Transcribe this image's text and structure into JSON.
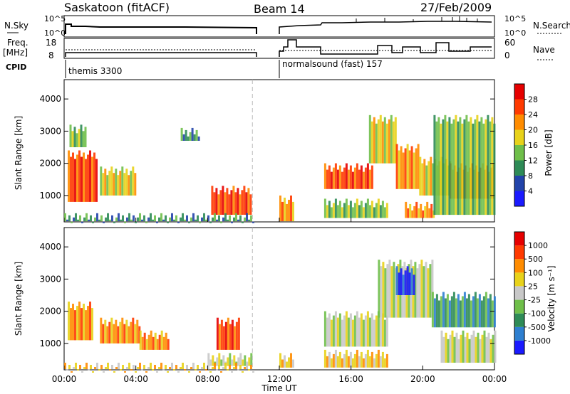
{
  "header": {
    "station": "Saskatoon (fitACF)",
    "beam": "Beam 14",
    "date": "27/Feb/2009"
  },
  "top_panels": {
    "nsky_label": "N.Sky",
    "nsky_ticks": [
      "10^5",
      "10^0"
    ],
    "nsearch_label": "N.Search",
    "nsearch_ticks": [
      "10^5",
      "10^0"
    ],
    "freq_label": "Freq.",
    "freq_unit": "[MHz]",
    "freq_ticks": [
      "18",
      "8"
    ],
    "nave_label": "Nave",
    "nave_ticks": [
      "60",
      "0"
    ],
    "cpid_label": "CPID",
    "cpid_entries": [
      {
        "text": "themis 3300"
      },
      {
        "text": "normalsound (fast) 157"
      }
    ]
  },
  "colors": {
    "axis": "#000000",
    "background": "#ffffff",
    "nodata": "#c8c8c8",
    "separator": "#bbbbbb"
  },
  "chart_data": [
    {
      "type": "heatmap",
      "name": "power",
      "ylabel": "Slant Range [km]",
      "y_ticks": [
        "1000",
        "2000",
        "3000",
        "4000"
      ],
      "ylim": [
        180,
        4600
      ],
      "xlim_hours": [
        0,
        24
      ],
      "colorbar_label": "Power [dB]",
      "colorbar_ticks": [
        "4",
        "8",
        "12",
        "16",
        "20",
        "24",
        "28"
      ],
      "colorbar_colors": [
        "#1a1aff",
        "#2244aa",
        "#2e8b57",
        "#6fbf4a",
        "#e8d21a",
        "#ff8c00",
        "#ff3a00",
        "#e60000"
      ],
      "patches": [
        {
          "t": [
            0.2,
            1.8
          ],
          "r": [
            800,
            2400
          ],
          "level": 6
        },
        {
          "t": [
            0.3,
            1.2
          ],
          "r": [
            2500,
            3200
          ],
          "level": 3
        },
        {
          "t": [
            2.0,
            4.0
          ],
          "r": [
            1000,
            1900
          ],
          "level": 4
        },
        {
          "t": [
            6.5,
            7.5
          ],
          "r": [
            2700,
            3100
          ],
          "level": 2
        },
        {
          "t": [
            8.2,
            10.4
          ],
          "r": [
            400,
            1300
          ],
          "level": 6
        },
        {
          "t": [
            0.0,
            10.5
          ],
          "r": [
            200,
            450
          ],
          "level": 2
        },
        {
          "t": [
            12.0,
            12.8
          ],
          "r": [
            200,
            1000
          ],
          "level": 5
        },
        {
          "t": [
            14.5,
            17.2
          ],
          "r": [
            1200,
            2000
          ],
          "level": 6
        },
        {
          "t": [
            14.5,
            18.0
          ],
          "r": [
            300,
            900
          ],
          "level": 3
        },
        {
          "t": [
            17.0,
            18.5
          ],
          "r": [
            2000,
            3500
          ],
          "level": 4
        },
        {
          "t": [
            18.5,
            19.8
          ],
          "r": [
            1200,
            2600
          ],
          "level": 5
        },
        {
          "t": [
            19.8,
            21.5
          ],
          "r": [
            1000,
            2200
          ],
          "level": 4
        },
        {
          "t": [
            21.5,
            24.0
          ],
          "r": [
            900,
            2000
          ],
          "level": 6
        },
        {
          "t": [
            19.0,
            20.6
          ],
          "r": [
            300,
            800
          ],
          "level": 5
        },
        {
          "t": [
            20.6,
            24.0
          ],
          "r": [
            400,
            3500
          ],
          "level": 3
        }
      ]
    },
    {
      "type": "heatmap",
      "name": "velocity",
      "ylabel": "Slant Range [km]",
      "y_ticks": [
        "1000",
        "2000",
        "3000",
        "4000"
      ],
      "ylim": [
        180,
        4600
      ],
      "xlim_hours": [
        0,
        24
      ],
      "x_ticks": [
        "00:00",
        "04:00",
        "08:00",
        "12:00",
        "16:00",
        "20:00",
        "00:00"
      ],
      "xlabel": "Time UT",
      "colorbar_label": "Velocity [m s⁻¹]",
      "colorbar_ticks": [
        "1000",
        "500",
        "100",
        "25",
        "-25",
        "-100",
        "-500",
        "-1000"
      ],
      "colorbar_colors": [
        "#1a1aff",
        "#2e7fd0",
        "#2e8b57",
        "#6fbf4a",
        "#c8c8c8",
        "#e8d21a",
        "#ff8c00",
        "#ff3a00",
        "#e60000"
      ],
      "patches": [
        {
          "t": [
            0.2,
            1.6
          ],
          "r": [
            1100,
            2300
          ],
          "level": 6
        },
        {
          "t": [
            2.0,
            4.2
          ],
          "r": [
            1000,
            1800
          ],
          "level": 6
        },
        {
          "t": [
            4.2,
            5.8
          ],
          "r": [
            800,
            1400
          ],
          "level": 6
        },
        {
          "t": [
            8.5,
            9.8
          ],
          "r": [
            800,
            1800
          ],
          "level": 7
        },
        {
          "t": [
            8.0,
            10.5
          ],
          "r": [
            300,
            700
          ],
          "level": 4
        },
        {
          "t": [
            0.0,
            10.5
          ],
          "r": [
            200,
            400
          ],
          "level": 5
        },
        {
          "t": [
            12.0,
            12.8
          ],
          "r": [
            250,
            700
          ],
          "level": 5
        },
        {
          "t": [
            14.5,
            18.0
          ],
          "r": [
            900,
            2000
          ],
          "level": 4
        },
        {
          "t": [
            14.5,
            18.0
          ],
          "r": [
            250,
            800
          ],
          "level": 5
        },
        {
          "t": [
            17.5,
            20.5
          ],
          "r": [
            1800,
            3600
          ],
          "level": 4
        },
        {
          "t": [
            20.5,
            24.0
          ],
          "r": [
            1500,
            2600
          ],
          "level": 2
        },
        {
          "t": [
            21.0,
            24.0
          ],
          "r": [
            400,
            1400
          ],
          "level": 4
        },
        {
          "t": [
            18.5,
            19.5
          ],
          "r": [
            2500,
            3400
          ],
          "level": 0
        }
      ]
    }
  ]
}
